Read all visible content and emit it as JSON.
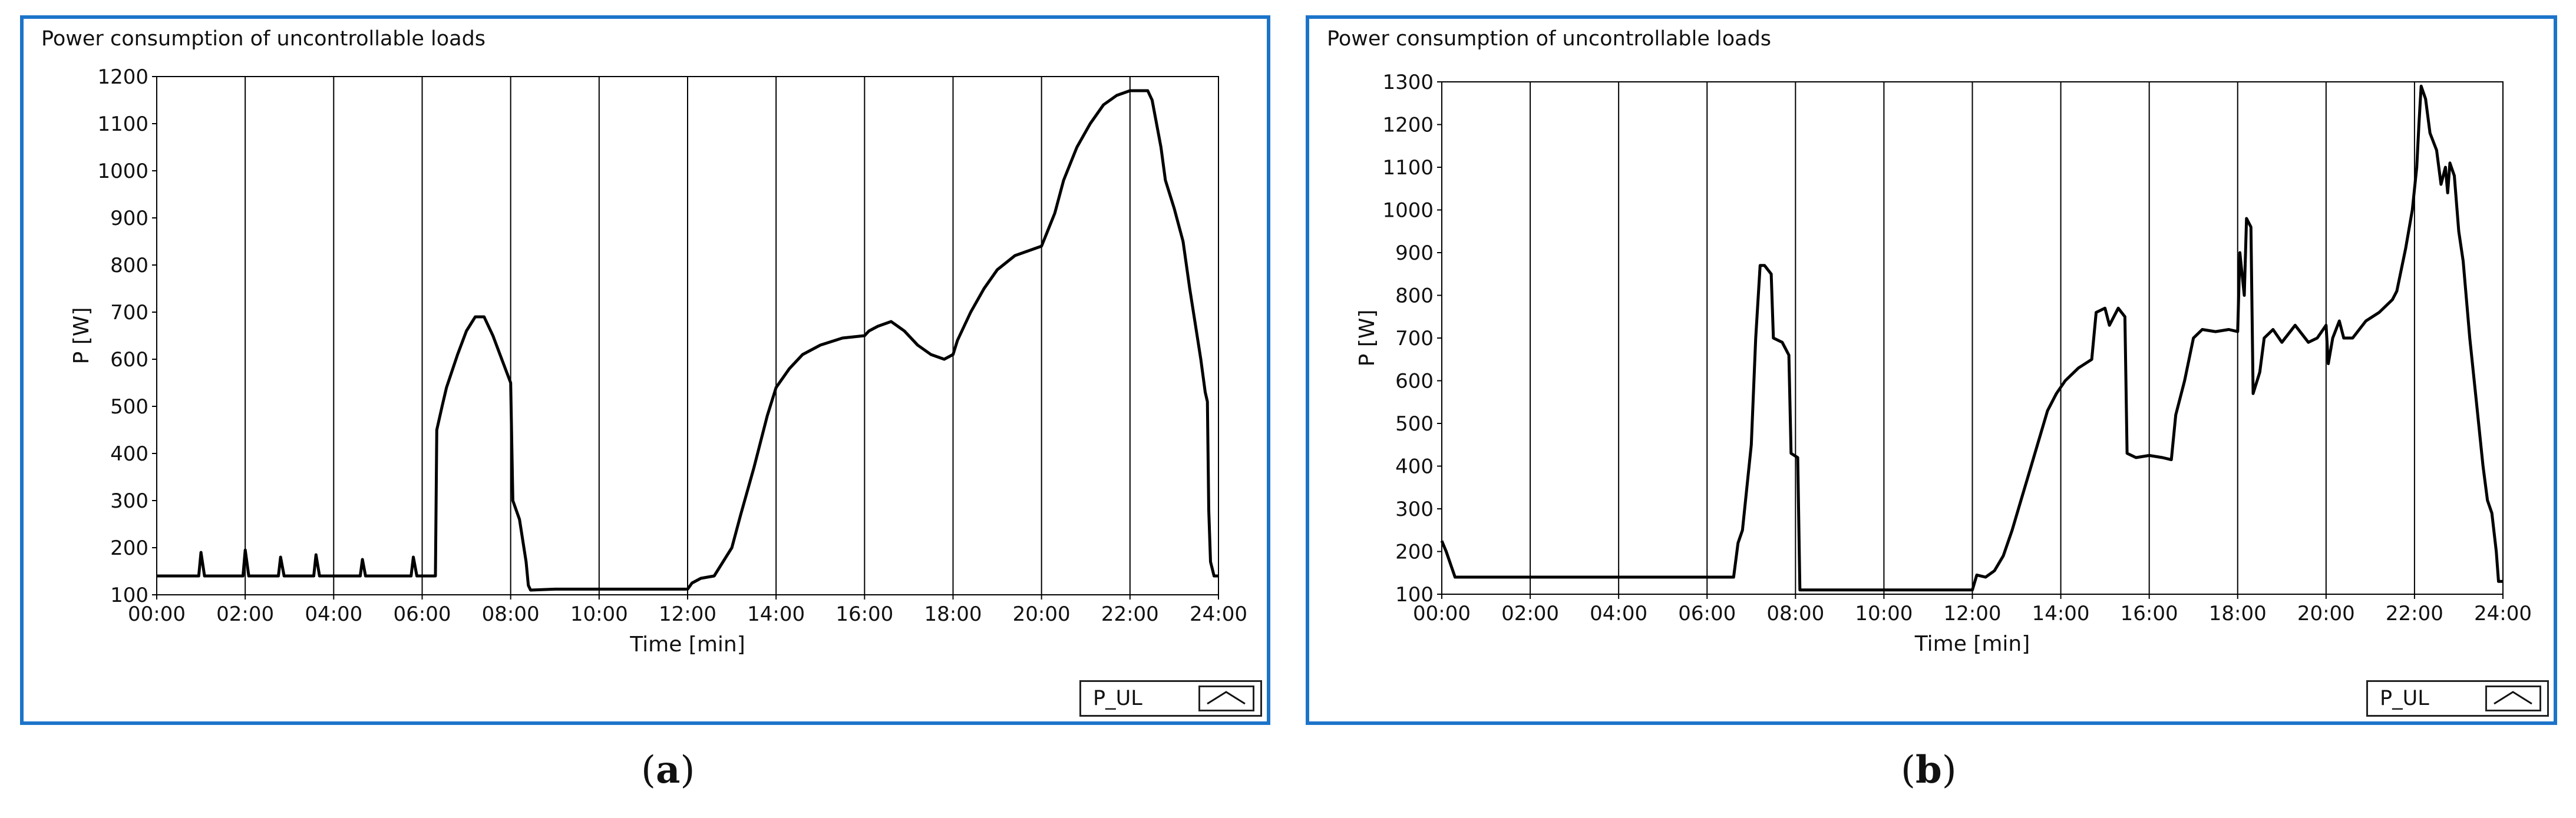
{
  "panels": {
    "a": {
      "caption_prefix": "(",
      "caption_letter": "a",
      "caption_suffix": ")",
      "legend_label": "P_UL"
    },
    "b": {
      "caption_prefix": "(",
      "caption_letter": "b",
      "caption_suffix": ")",
      "legend_label": "P_UL"
    }
  },
  "chart_data": [
    {
      "type": "line",
      "title": "Power consumption of uncontrollable loads",
      "xlabel": "Time [min]",
      "ylabel": "P [W]",
      "xlim": [
        0,
        24
      ],
      "ylim": [
        100,
        1200
      ],
      "x_ticks": [
        "00:00",
        "02:00",
        "04:00",
        "06:00",
        "08:00",
        "10:00",
        "12:00",
        "14:00",
        "16:00",
        "18:00",
        "20:00",
        "22:00",
        "24:00"
      ],
      "y_ticks": [
        100,
        200,
        300,
        400,
        500,
        600,
        700,
        800,
        900,
        1000,
        1100,
        1200
      ],
      "grid": "vertical",
      "legend_position": "bottom-right",
      "series": [
        {
          "name": "P_UL",
          "color": "#000000",
          "points": [
            [
              0,
              140
            ],
            [
              0.95,
              140
            ],
            [
              1.0,
              190
            ],
            [
              1.08,
              140
            ],
            [
              1.95,
              140
            ],
            [
              2.0,
              195
            ],
            [
              2.08,
              140
            ],
            [
              2.75,
              140
            ],
            [
              2.8,
              180
            ],
            [
              2.88,
              140
            ],
            [
              3.55,
              140
            ],
            [
              3.6,
              185
            ],
            [
              3.68,
              140
            ],
            [
              4.6,
              140
            ],
            [
              4.65,
              175
            ],
            [
              4.72,
              140
            ],
            [
              5.75,
              140
            ],
            [
              5.8,
              180
            ],
            [
              5.88,
              140
            ],
            [
              6.3,
              140
            ],
            [
              6.33,
              450
            ],
            [
              6.45,
              500
            ],
            [
              6.55,
              540
            ],
            [
              6.8,
              610
            ],
            [
              7.0,
              660
            ],
            [
              7.2,
              690
            ],
            [
              7.4,
              690
            ],
            [
              7.6,
              650
            ],
            [
              7.8,
              600
            ],
            [
              8.0,
              550
            ],
            [
              8.05,
              300
            ],
            [
              8.2,
              260
            ],
            [
              8.35,
              170
            ],
            [
              8.4,
              120
            ],
            [
              8.45,
              110
            ],
            [
              9.0,
              112
            ],
            [
              10.0,
              112
            ],
            [
              11.0,
              112
            ],
            [
              12.0,
              112
            ],
            [
              12.1,
              125
            ],
            [
              12.3,
              135
            ],
            [
              12.6,
              140
            ],
            [
              12.8,
              170
            ],
            [
              13.0,
              200
            ],
            [
              13.2,
              270
            ],
            [
              13.5,
              370
            ],
            [
              13.8,
              480
            ],
            [
              14.0,
              540
            ],
            [
              14.3,
              580
            ],
            [
              14.6,
              610
            ],
            [
              15.0,
              630
            ],
            [
              15.5,
              645
            ],
            [
              16.0,
              650
            ],
            [
              16.1,
              660
            ],
            [
              16.3,
              670
            ],
            [
              16.6,
              680
            ],
            [
              16.9,
              660
            ],
            [
              17.2,
              630
            ],
            [
              17.5,
              610
            ],
            [
              17.8,
              600
            ],
            [
              18.0,
              610
            ],
            [
              18.1,
              640
            ],
            [
              18.4,
              700
            ],
            [
              18.7,
              750
            ],
            [
              19.0,
              790
            ],
            [
              19.4,
              820
            ],
            [
              19.7,
              830
            ],
            [
              20.0,
              840
            ],
            [
              20.3,
              910
            ],
            [
              20.5,
              980
            ],
            [
              20.8,
              1050
            ],
            [
              21.1,
              1100
            ],
            [
              21.4,
              1140
            ],
            [
              21.7,
              1160
            ],
            [
              22.0,
              1170
            ],
            [
              22.4,
              1170
            ],
            [
              22.5,
              1150
            ],
            [
              22.6,
              1100
            ],
            [
              22.7,
              1050
            ],
            [
              22.8,
              980
            ],
            [
              23.0,
              920
            ],
            [
              23.2,
              850
            ],
            [
              23.35,
              750
            ],
            [
              23.5,
              660
            ],
            [
              23.6,
              600
            ],
            [
              23.7,
              530
            ],
            [
              23.75,
              510
            ],
            [
              23.78,
              280
            ],
            [
              23.82,
              170
            ],
            [
              23.9,
              140
            ],
            [
              24.0,
              140
            ]
          ]
        }
      ]
    },
    {
      "type": "line",
      "title": "Power consumption of uncontrollable loads",
      "xlabel": "Time [min]",
      "ylabel": "P [W]",
      "xlim": [
        0,
        24
      ],
      "ylim": [
        100,
        1300
      ],
      "x_ticks": [
        "00:00",
        "02:00",
        "04:00",
        "06:00",
        "08:00",
        "10:00",
        "12:00",
        "14:00",
        "16:00",
        "18:00",
        "20:00",
        "22:00",
        "24:00"
      ],
      "y_ticks": [
        100,
        200,
        300,
        400,
        500,
        600,
        700,
        800,
        900,
        1000,
        1100,
        1200,
        1300
      ],
      "grid": "vertical",
      "legend_position": "bottom-right",
      "series": [
        {
          "name": "P_UL",
          "color": "#000000",
          "points": [
            [
              0,
              225
            ],
            [
              0.1,
              200
            ],
            [
              0.2,
              170
            ],
            [
              0.3,
              140
            ],
            [
              1,
              140
            ],
            [
              2,
              140
            ],
            [
              3,
              140
            ],
            [
              4,
              140
            ],
            [
              5,
              140
            ],
            [
              6,
              140
            ],
            [
              6.6,
              140
            ],
            [
              6.7,
              220
            ],
            [
              6.8,
              250
            ],
            [
              6.9,
              350
            ],
            [
              7.0,
              450
            ],
            [
              7.1,
              700
            ],
            [
              7.2,
              870
            ],
            [
              7.3,
              870
            ],
            [
              7.45,
              850
            ],
            [
              7.5,
              700
            ],
            [
              7.7,
              690
            ],
            [
              7.85,
              660
            ],
            [
              7.9,
              430
            ],
            [
              8.05,
              420
            ],
            [
              8.1,
              110
            ],
            [
              8.2,
              110
            ],
            [
              9,
              110
            ],
            [
              10,
              110
            ],
            [
              11,
              110
            ],
            [
              12,
              110
            ],
            [
              12.1,
              145
            ],
            [
              12.3,
              140
            ],
            [
              12.5,
              155
            ],
            [
              12.7,
              190
            ],
            [
              12.9,
              250
            ],
            [
              13.1,
              320
            ],
            [
              13.3,
              390
            ],
            [
              13.5,
              460
            ],
            [
              13.7,
              530
            ],
            [
              13.9,
              570
            ],
            [
              14.1,
              600
            ],
            [
              14.4,
              630
            ],
            [
              14.7,
              650
            ],
            [
              14.8,
              760
            ],
            [
              15.0,
              770
            ],
            [
              15.1,
              730
            ],
            [
              15.3,
              770
            ],
            [
              15.45,
              750
            ],
            [
              15.5,
              430
            ],
            [
              15.7,
              420
            ],
            [
              16.0,
              425
            ],
            [
              16.3,
              420
            ],
            [
              16.5,
              415
            ],
            [
              16.6,
              520
            ],
            [
              16.8,
              600
            ],
            [
              17.0,
              700
            ],
            [
              17.2,
              720
            ],
            [
              17.5,
              715
            ],
            [
              17.8,
              720
            ],
            [
              18.0,
              715
            ],
            [
              18.05,
              900
            ],
            [
              18.15,
              800
            ],
            [
              18.2,
              980
            ],
            [
              18.3,
              960
            ],
            [
              18.35,
              570
            ],
            [
              18.5,
              620
            ],
            [
              18.6,
              700
            ],
            [
              18.8,
              720
            ],
            [
              19.0,
              690
            ],
            [
              19.3,
              730
            ],
            [
              19.6,
              690
            ],
            [
              19.8,
              700
            ],
            [
              20.0,
              730
            ],
            [
              20.05,
              640
            ],
            [
              20.15,
              700
            ],
            [
              20.3,
              740
            ],
            [
              20.4,
              700
            ],
            [
              20.6,
              700
            ],
            [
              20.9,
              740
            ],
            [
              21.2,
              760
            ],
            [
              21.5,
              790
            ],
            [
              21.6,
              810
            ],
            [
              21.8,
              910
            ],
            [
              21.95,
              1000
            ],
            [
              22.05,
              1100
            ],
            [
              22.1,
              1200
            ],
            [
              22.15,
              1290
            ],
            [
              22.25,
              1260
            ],
            [
              22.35,
              1180
            ],
            [
              22.5,
              1140
            ],
            [
              22.6,
              1060
            ],
            [
              22.7,
              1100
            ],
            [
              22.75,
              1040
            ],
            [
              22.8,
              1110
            ],
            [
              22.9,
              1080
            ],
            [
              23.0,
              950
            ],
            [
              23.1,
              880
            ],
            [
              23.25,
              700
            ],
            [
              23.4,
              550
            ],
            [
              23.55,
              400
            ],
            [
              23.65,
              320
            ],
            [
              23.75,
              290
            ],
            [
              23.85,
              200
            ],
            [
              23.9,
              130
            ],
            [
              24.0,
              130
            ]
          ]
        }
      ]
    }
  ]
}
